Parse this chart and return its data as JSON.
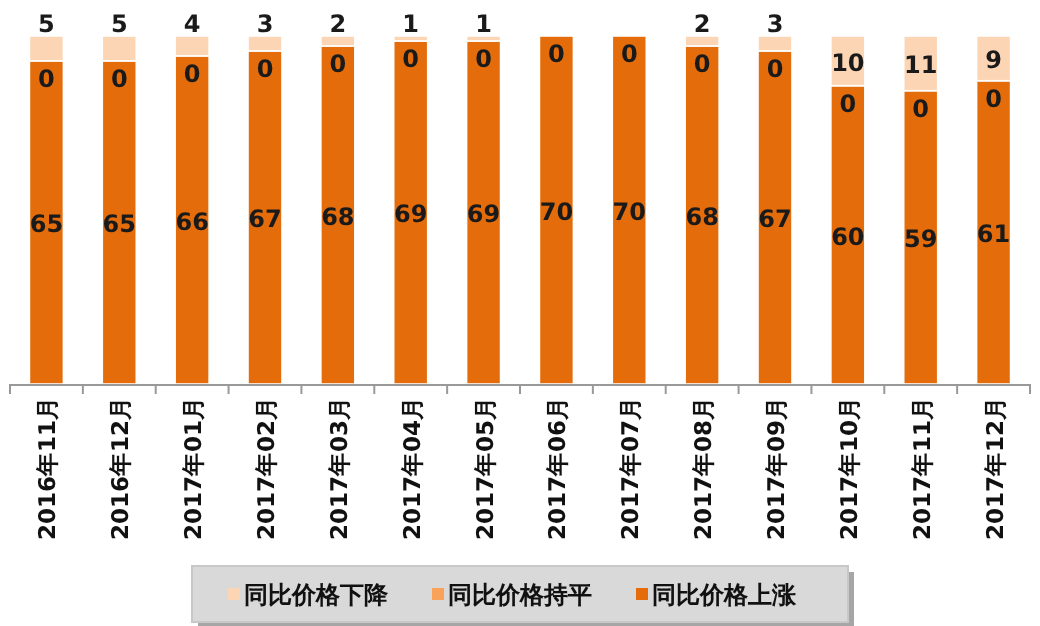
{
  "chart_data": {
    "type": "bar",
    "stacked": true,
    "legend": "bottom",
    "categories": [
      "2016年11月",
      "2016年12月",
      "2017年01月",
      "2017年02月",
      "2017年03月",
      "2017年04月",
      "2017年05月",
      "2017年06月",
      "2017年07月",
      "2017年08月",
      "2017年09月",
      "2017年10月",
      "2017年11月",
      "2017年12月"
    ],
    "series": [
      {
        "name": "同比价格上涨",
        "color": "#e46c0a",
        "values": [
          65,
          65,
          66,
          67,
          68,
          69,
          69,
          70,
          70,
          68,
          67,
          60,
          59,
          61
        ],
        "value_labels": [
          "65",
          "65",
          "66",
          "67",
          "68",
          "69",
          "69",
          "70",
          "70",
          "68",
          "67",
          "60",
          "59",
          "61"
        ]
      },
      {
        "name": "同比价格持平",
        "color": "#f9a25a",
        "values": [
          0,
          0,
          0,
          0,
          0,
          0,
          0,
          0,
          0,
          0,
          0,
          0,
          0,
          0
        ],
        "value_labels": [
          "0",
          "0",
          "0",
          "0",
          "0",
          "0",
          "0",
          "0",
          "0",
          "0",
          "0",
          "0",
          "0",
          "0"
        ]
      },
      {
        "name": "同比价格下降",
        "color": "#fcd5b5",
        "values": [
          5,
          5,
          4,
          3,
          2,
          1,
          1,
          0,
          0,
          2,
          3,
          10,
          11,
          9
        ],
        "value_labels": [
          "5",
          "5",
          "4",
          "3",
          "2",
          "1",
          "1",
          null,
          null,
          "2",
          "3",
          "10",
          "11",
          "9"
        ]
      }
    ]
  }
}
